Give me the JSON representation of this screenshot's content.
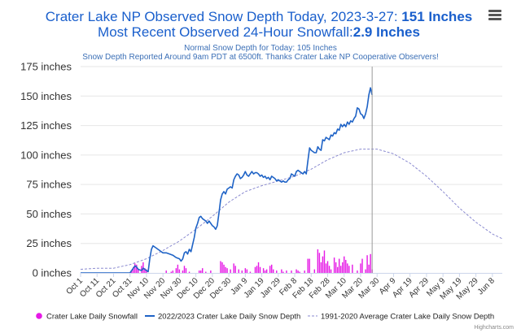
{
  "header": {
    "title_prefix": "Crater Lake NP Observed Snow Depth Today, 2023-3-27: ",
    "title_value": "151 Inches",
    "title2_prefix": "Most Recent Observed 24-Hour Snowfall:",
    "title2_value": "2.9 Inches",
    "subtitle1": "Normal Snow Depth for Today: 105 Inches",
    "subtitle2": "Snow Depth Reported Around 9am PDT at 6500ft. Thanks Crater Lake NP Cooperative Observers!"
  },
  "menu": {
    "icon": "hamburger-menu-icon"
  },
  "credit": "Highcharts.com",
  "colors": {
    "snowfall": "#e619e6",
    "depth": "#1f63c6",
    "normal": "#8a8ad0",
    "grid": "#e6e6e6"
  },
  "chart_data": {
    "type": "line",
    "y_axis": {
      "min": 0,
      "max": 175,
      "ticks": [
        0,
        25,
        50,
        75,
        100,
        125,
        150,
        175
      ],
      "tick_labels": [
        "0 inches",
        "25 inches",
        "50 inches",
        "75 inches",
        "100 inches",
        "125 inches",
        "150 inches",
        "175 inches"
      ]
    },
    "x_axis": {
      "start": "Oct 1",
      "end": "Jun 14",
      "total_days": 256,
      "tick_labels": [
        "Oct 1",
        "Oct 11",
        "Oct 21",
        "Oct 31",
        "Nov 10",
        "Nov 20",
        "Nov 30",
        "Dec 10",
        "Dec 20",
        "Dec 30",
        "Jan 9",
        "Jan 19",
        "Jan 29",
        "Feb 8",
        "Feb 18",
        "Feb 28",
        "Mar 10",
        "Mar 20",
        "Mar 30",
        "Apr 9",
        "Apr 19",
        "Apr 29",
        "May 9",
        "May 19",
        "May 29",
        "Jun 8"
      ],
      "tick_days": [
        0,
        10,
        20,
        30,
        40,
        50,
        60,
        70,
        80,
        90,
        100,
        110,
        120,
        130,
        140,
        150,
        160,
        170,
        180,
        190,
        200,
        210,
        220,
        230,
        240,
        250
      ],
      "today_marker_day": 177
    },
    "series": [
      {
        "name": "Crater Lake Daily Snowfall",
        "type": "column",
        "points": [
          [
            31,
            2
          ],
          [
            32,
            5
          ],
          [
            33,
            8
          ],
          [
            34,
            7
          ],
          [
            35,
            3
          ],
          [
            37,
            6
          ],
          [
            38,
            9
          ],
          [
            39,
            4
          ],
          [
            40,
            3
          ],
          [
            52,
            2
          ],
          [
            55,
            1
          ],
          [
            56,
            2
          ],
          [
            58,
            4
          ],
          [
            59,
            7
          ],
          [
            60,
            3
          ],
          [
            62,
            2
          ],
          [
            63,
            6
          ],
          [
            64,
            4
          ],
          [
            66,
            1
          ],
          [
            72,
            2
          ],
          [
            73,
            2
          ],
          [
            74,
            4
          ],
          [
            76,
            1
          ],
          [
            79,
            2
          ],
          [
            85,
            10
          ],
          [
            86,
            9
          ],
          [
            87,
            7
          ],
          [
            88,
            5
          ],
          [
            89,
            4
          ],
          [
            91,
            3
          ],
          [
            93,
            8
          ],
          [
            94,
            6
          ],
          [
            96,
            3
          ],
          [
            98,
            2
          ],
          [
            100,
            4
          ],
          [
            101,
            3
          ],
          [
            103,
            1
          ],
          [
            106,
            5
          ],
          [
            107,
            6
          ],
          [
            108,
            9
          ],
          [
            109,
            5
          ],
          [
            111,
            4
          ],
          [
            112,
            2
          ],
          [
            113,
            3
          ],
          [
            115,
            6
          ],
          [
            116,
            7
          ],
          [
            117,
            3
          ],
          [
            119,
            2
          ],
          [
            122,
            3
          ],
          [
            123,
            1
          ],
          [
            125,
            2
          ],
          [
            128,
            2
          ],
          [
            131,
            3
          ],
          [
            132,
            2
          ],
          [
            133,
            1
          ],
          [
            136,
            2
          ],
          [
            138,
            12
          ],
          [
            139,
            12
          ],
          [
            142,
            3
          ],
          [
            144,
            20
          ],
          [
            145,
            17
          ],
          [
            146,
            9
          ],
          [
            147,
            14
          ],
          [
            148,
            19
          ],
          [
            149,
            8
          ],
          [
            150,
            10
          ],
          [
            151,
            6
          ],
          [
            152,
            3
          ],
          [
            154,
            13
          ],
          [
            155,
            9
          ],
          [
            156,
            5
          ],
          [
            157,
            12
          ],
          [
            158,
            6
          ],
          [
            159,
            9
          ],
          [
            160,
            14
          ],
          [
            161,
            11
          ],
          [
            162,
            8
          ],
          [
            163,
            6
          ],
          [
            165,
            7
          ],
          [
            168,
            2
          ],
          [
            170,
            8
          ],
          [
            171,
            12
          ],
          [
            173,
            3
          ],
          [
            174,
            15
          ],
          [
            175,
            7
          ],
          [
            176,
            16
          ],
          [
            177,
            3
          ]
        ]
      },
      {
        "name": "2022/2023 Crater Lake Daily Snow Depth",
        "type": "line",
        "points": [
          [
            0,
            0
          ],
          [
            30,
            0
          ],
          [
            31,
            2
          ],
          [
            32,
            4
          ],
          [
            33,
            6
          ],
          [
            34,
            5
          ],
          [
            35,
            3
          ],
          [
            37,
            2
          ],
          [
            38,
            4
          ],
          [
            39,
            3
          ],
          [
            40,
            2
          ],
          [
            41,
            1
          ],
          [
            42,
            12
          ],
          [
            43,
            20
          ],
          [
            44,
            23
          ],
          [
            45,
            22
          ],
          [
            46,
            21
          ],
          [
            47,
            20
          ],
          [
            48,
            19
          ],
          [
            49,
            18
          ],
          [
            50,
            17
          ],
          [
            52,
            17
          ],
          [
            54,
            16
          ],
          [
            56,
            15
          ],
          [
            58,
            13
          ],
          [
            60,
            12
          ],
          [
            61,
            10
          ],
          [
            62,
            12
          ],
          [
            63,
            17
          ],
          [
            64,
            18
          ],
          [
            65,
            16
          ],
          [
            66,
            20
          ],
          [
            67,
            18
          ],
          [
            68,
            24
          ],
          [
            69,
            30
          ],
          [
            70,
            38
          ],
          [
            71,
            42
          ],
          [
            72,
            47
          ],
          [
            73,
            48
          ],
          [
            74,
            46
          ],
          [
            75,
            45
          ],
          [
            76,
            44
          ],
          [
            77,
            42
          ],
          [
            78,
            44
          ],
          [
            79,
            42
          ],
          [
            80,
            40
          ],
          [
            81,
            39
          ],
          [
            82,
            37
          ],
          [
            83,
            40
          ],
          [
            84,
            51
          ],
          [
            85,
            62
          ],
          [
            86,
            67
          ],
          [
            87,
            69
          ],
          [
            88,
            67
          ],
          [
            89,
            71
          ],
          [
            90,
            72
          ],
          [
            91,
            73
          ],
          [
            92,
            72
          ],
          [
            93,
            79
          ],
          [
            94,
            82
          ],
          [
            95,
            84
          ],
          [
            96,
            83
          ],
          [
            97,
            80
          ],
          [
            98,
            81
          ],
          [
            99,
            83
          ],
          [
            100,
            86
          ],
          [
            101,
            83
          ],
          [
            102,
            82
          ],
          [
            103,
            84
          ],
          [
            104,
            86
          ],
          [
            105,
            84
          ],
          [
            106,
            85
          ],
          [
            107,
            85
          ],
          [
            108,
            84
          ],
          [
            109,
            82
          ],
          [
            110,
            83
          ],
          [
            111,
            81
          ],
          [
            112,
            82
          ],
          [
            113,
            80
          ],
          [
            114,
            81
          ],
          [
            115,
            79
          ],
          [
            116,
            82
          ],
          [
            117,
            81
          ],
          [
            118,
            80
          ],
          [
            119,
            78
          ],
          [
            120,
            79
          ],
          [
            121,
            78
          ],
          [
            122,
            77
          ],
          [
            123,
            78
          ],
          [
            124,
            77
          ],
          [
            125,
            77
          ],
          [
            126,
            79
          ],
          [
            127,
            80
          ],
          [
            128,
            84
          ],
          [
            129,
            83
          ],
          [
            130,
            82
          ],
          [
            131,
            86
          ],
          [
            132,
            87
          ],
          [
            133,
            86
          ],
          [
            134,
            85
          ],
          [
            135,
            84
          ],
          [
            136,
            86
          ],
          [
            137,
            84
          ],
          [
            138,
            95
          ],
          [
            139,
            106
          ],
          [
            140,
            104
          ],
          [
            141,
            103
          ],
          [
            142,
            102
          ],
          [
            143,
            102
          ],
          [
            144,
            107
          ],
          [
            145,
            105
          ],
          [
            146,
            104
          ],
          [
            147,
            113
          ],
          [
            148,
            112
          ],
          [
            149,
            115
          ],
          [
            150,
            114
          ],
          [
            151,
            113
          ],
          [
            152,
            117
          ],
          [
            153,
            116
          ],
          [
            154,
            119
          ],
          [
            155,
            118
          ],
          [
            156,
            122
          ],
          [
            157,
            121
          ],
          [
            158,
            126
          ],
          [
            159,
            124
          ],
          [
            160,
            126
          ],
          [
            161,
            124
          ],
          [
            162,
            128
          ],
          [
            163,
            126
          ],
          [
            164,
            129
          ],
          [
            165,
            128
          ],
          [
            166,
            131
          ],
          [
            167,
            133
          ],
          [
            168,
            140
          ],
          [
            169,
            139
          ],
          [
            170,
            135
          ],
          [
            171,
            134
          ],
          [
            172,
            131
          ],
          [
            173,
            135
          ],
          [
            174,
            141
          ],
          [
            175,
            151
          ],
          [
            176,
            157
          ],
          [
            177,
            151
          ]
        ]
      },
      {
        "name": "1991-2020 Average Crater Lake Daily Snow Depth",
        "type": "line-dashed",
        "points": [
          [
            0,
            3
          ],
          [
            10,
            4
          ],
          [
            20,
            4
          ],
          [
            30,
            7
          ],
          [
            40,
            12
          ],
          [
            50,
            19
          ],
          [
            60,
            27
          ],
          [
            70,
            37
          ],
          [
            80,
            48
          ],
          [
            90,
            60
          ],
          [
            100,
            69
          ],
          [
            110,
            74
          ],
          [
            120,
            78
          ],
          [
            130,
            82
          ],
          [
            140,
            88
          ],
          [
            150,
            96
          ],
          [
            160,
            102
          ],
          [
            170,
            105
          ],
          [
            180,
            105
          ],
          [
            190,
            101
          ],
          [
            200,
            93
          ],
          [
            210,
            82
          ],
          [
            220,
            69
          ],
          [
            230,
            55
          ],
          [
            240,
            43
          ],
          [
            250,
            33
          ],
          [
            256,
            29
          ]
        ]
      }
    ],
    "legend_position": "bottom"
  }
}
